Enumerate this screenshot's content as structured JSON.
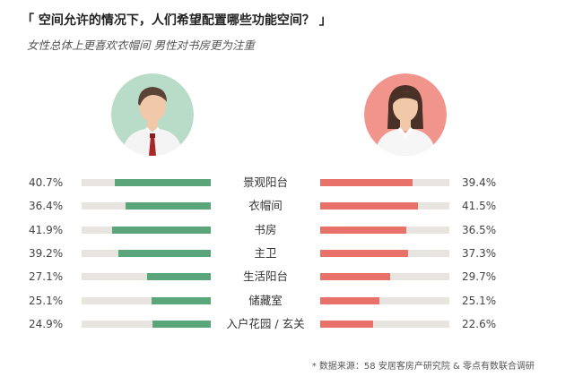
{
  "title": "「 空间允许的情况下，人们希望配置哪些功能空间？ 」",
  "subtitle": "女性总体上更喜欢衣帽间 男性对书房更为注重",
  "footnote": "* 数据来源：58 安居客房产研究院 & 零点有数联合调研",
  "colors": {
    "male": "#5aa57a",
    "female": "#e8716a",
    "track": "#e8e4e0",
    "male_avatar_bg": "#b8dcc8",
    "female_avatar_bg": "#f0948c"
  },
  "icons": {
    "male": "man-avatar-icon",
    "female": "woman-avatar-icon"
  },
  "chart_data": {
    "type": "bar",
    "title": "「 空间允许的情况下，人们希望配置哪些功能空间？ 」",
    "categories": [
      "景观阳台",
      "衣帽间",
      "书房",
      "主卫",
      "生活阳台",
      "储藏室",
      "入户花园 / 玄关"
    ],
    "male_labels": [
      "40.7%",
      "36.4%",
      "41.9%",
      "39.2%",
      "27.1%",
      "25.1%",
      "24.9%"
    ],
    "female_labels": [
      "39.4%",
      "41.5%",
      "36.5%",
      "37.3%",
      "29.7%",
      "25.1%",
      "22.6%"
    ],
    "series": [
      {
        "values": [
          40.7,
          36.4,
          41.9,
          39.2,
          27.1,
          25.1,
          24.9
        ]
      },
      {
        "values": [
          39.4,
          41.5,
          36.5,
          37.3,
          29.7,
          25.1,
          22.6
        ]
      }
    ],
    "xlim": [
      0,
      55
    ],
    "grid": false
  }
}
